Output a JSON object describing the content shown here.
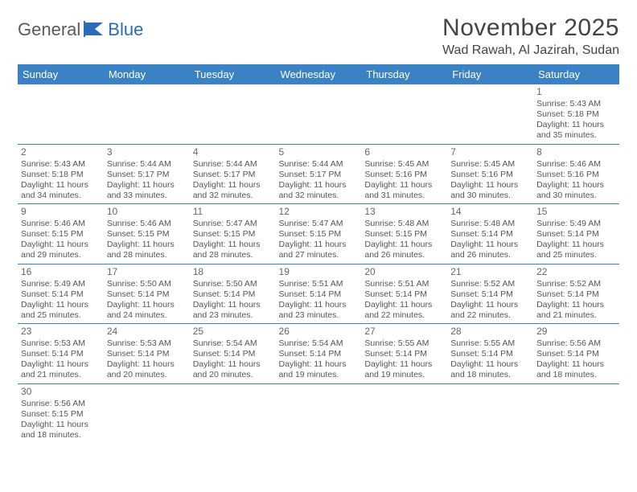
{
  "brand": {
    "part1": "General",
    "part2": "Blue"
  },
  "title": "November 2025",
  "location": "Wad Rawah, Al Jazirah, Sudan",
  "colors": {
    "header_bg": "#3a82c4",
    "header_fg": "#ffffff",
    "rule": "#3a82c4",
    "logo_blue": "#2a6db6"
  },
  "weekdays": [
    "Sunday",
    "Monday",
    "Tuesday",
    "Wednesday",
    "Thursday",
    "Friday",
    "Saturday"
  ],
  "first_weekday_index": 6,
  "days": [
    {
      "n": 1,
      "sunrise": "5:43 AM",
      "sunset": "5:18 PM",
      "daylight": "11 hours and 35 minutes."
    },
    {
      "n": 2,
      "sunrise": "5:43 AM",
      "sunset": "5:18 PM",
      "daylight": "11 hours and 34 minutes."
    },
    {
      "n": 3,
      "sunrise": "5:44 AM",
      "sunset": "5:17 PM",
      "daylight": "11 hours and 33 minutes."
    },
    {
      "n": 4,
      "sunrise": "5:44 AM",
      "sunset": "5:17 PM",
      "daylight": "11 hours and 32 minutes."
    },
    {
      "n": 5,
      "sunrise": "5:44 AM",
      "sunset": "5:17 PM",
      "daylight": "11 hours and 32 minutes."
    },
    {
      "n": 6,
      "sunrise": "5:45 AM",
      "sunset": "5:16 PM",
      "daylight": "11 hours and 31 minutes."
    },
    {
      "n": 7,
      "sunrise": "5:45 AM",
      "sunset": "5:16 PM",
      "daylight": "11 hours and 30 minutes."
    },
    {
      "n": 8,
      "sunrise": "5:46 AM",
      "sunset": "5:16 PM",
      "daylight": "11 hours and 30 minutes."
    },
    {
      "n": 9,
      "sunrise": "5:46 AM",
      "sunset": "5:15 PM",
      "daylight": "11 hours and 29 minutes."
    },
    {
      "n": 10,
      "sunrise": "5:46 AM",
      "sunset": "5:15 PM",
      "daylight": "11 hours and 28 minutes."
    },
    {
      "n": 11,
      "sunrise": "5:47 AM",
      "sunset": "5:15 PM",
      "daylight": "11 hours and 28 minutes."
    },
    {
      "n": 12,
      "sunrise": "5:47 AM",
      "sunset": "5:15 PM",
      "daylight": "11 hours and 27 minutes."
    },
    {
      "n": 13,
      "sunrise": "5:48 AM",
      "sunset": "5:15 PM",
      "daylight": "11 hours and 26 minutes."
    },
    {
      "n": 14,
      "sunrise": "5:48 AM",
      "sunset": "5:14 PM",
      "daylight": "11 hours and 26 minutes."
    },
    {
      "n": 15,
      "sunrise": "5:49 AM",
      "sunset": "5:14 PM",
      "daylight": "11 hours and 25 minutes."
    },
    {
      "n": 16,
      "sunrise": "5:49 AM",
      "sunset": "5:14 PM",
      "daylight": "11 hours and 25 minutes."
    },
    {
      "n": 17,
      "sunrise": "5:50 AM",
      "sunset": "5:14 PM",
      "daylight": "11 hours and 24 minutes."
    },
    {
      "n": 18,
      "sunrise": "5:50 AM",
      "sunset": "5:14 PM",
      "daylight": "11 hours and 23 minutes."
    },
    {
      "n": 19,
      "sunrise": "5:51 AM",
      "sunset": "5:14 PM",
      "daylight": "11 hours and 23 minutes."
    },
    {
      "n": 20,
      "sunrise": "5:51 AM",
      "sunset": "5:14 PM",
      "daylight": "11 hours and 22 minutes."
    },
    {
      "n": 21,
      "sunrise": "5:52 AM",
      "sunset": "5:14 PM",
      "daylight": "11 hours and 22 minutes."
    },
    {
      "n": 22,
      "sunrise": "5:52 AM",
      "sunset": "5:14 PM",
      "daylight": "11 hours and 21 minutes."
    },
    {
      "n": 23,
      "sunrise": "5:53 AM",
      "sunset": "5:14 PM",
      "daylight": "11 hours and 21 minutes."
    },
    {
      "n": 24,
      "sunrise": "5:53 AM",
      "sunset": "5:14 PM",
      "daylight": "11 hours and 20 minutes."
    },
    {
      "n": 25,
      "sunrise": "5:54 AM",
      "sunset": "5:14 PM",
      "daylight": "11 hours and 20 minutes."
    },
    {
      "n": 26,
      "sunrise": "5:54 AM",
      "sunset": "5:14 PM",
      "daylight": "11 hours and 19 minutes."
    },
    {
      "n": 27,
      "sunrise": "5:55 AM",
      "sunset": "5:14 PM",
      "daylight": "11 hours and 19 minutes."
    },
    {
      "n": 28,
      "sunrise": "5:55 AM",
      "sunset": "5:14 PM",
      "daylight": "11 hours and 18 minutes."
    },
    {
      "n": 29,
      "sunrise": "5:56 AM",
      "sunset": "5:14 PM",
      "daylight": "11 hours and 18 minutes."
    },
    {
      "n": 30,
      "sunrise": "5:56 AM",
      "sunset": "5:15 PM",
      "daylight": "11 hours and 18 minutes."
    }
  ],
  "labels": {
    "sunrise": "Sunrise:",
    "sunset": "Sunset:",
    "daylight": "Daylight:"
  }
}
